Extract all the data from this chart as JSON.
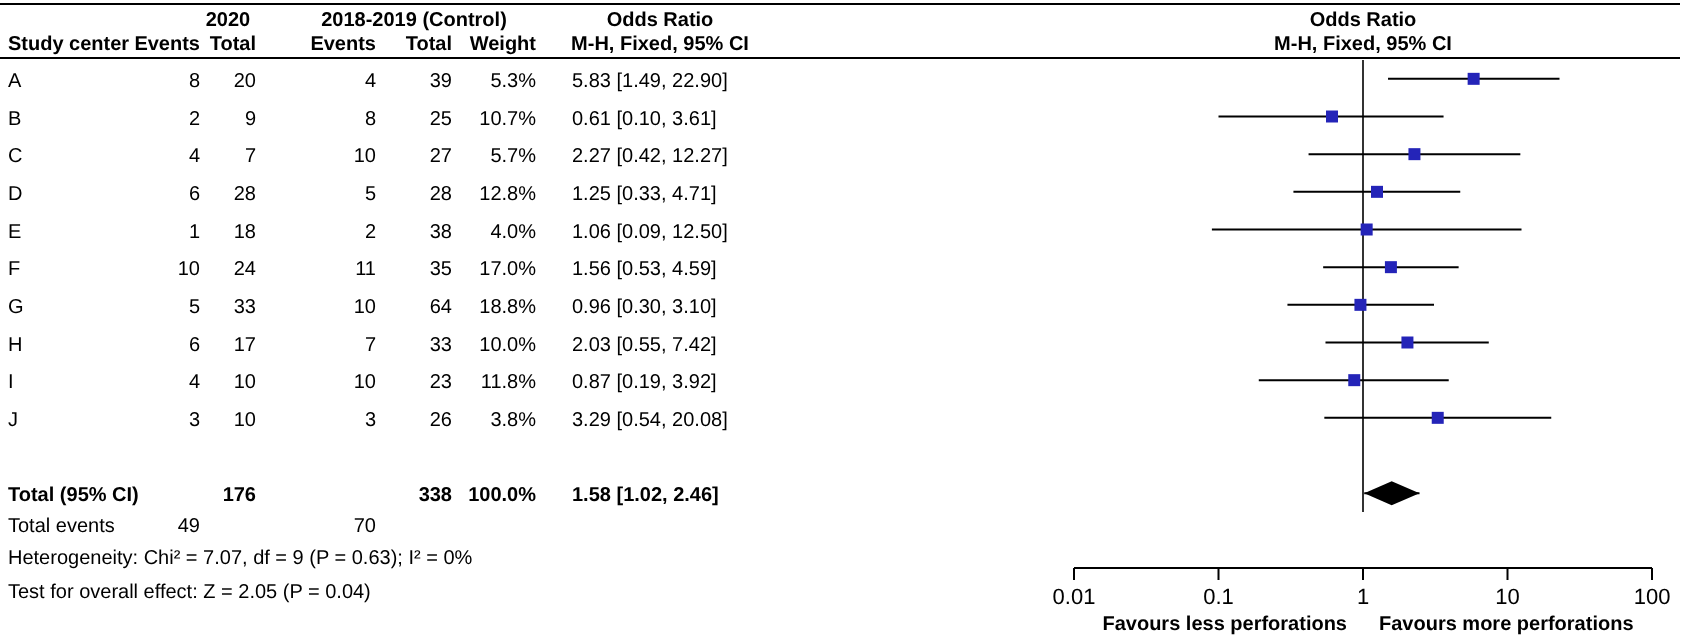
{
  "chart_data": [
    {
      "type": "other",
      "annotations": [
        "Study center",
        "2020",
        "2018-2019 (Control)",
        "Odds Ratio",
        "M-H, Fixed, 95% CI",
        "Events",
        "Total",
        "Events",
        "Total",
        "Weight",
        "A",
        "8",
        "20",
        "4",
        "39",
        "5.3%",
        "5.83 [1.49, 22.90]",
        "B",
        "2",
        "9",
        "8",
        "25",
        "10.7%",
        "0.61 [0.10, 3.61]",
        "C",
        "4",
        "7",
        "10",
        "27",
        "5.7%",
        "2.27 [0.42, 12.27]",
        "D",
        "6",
        "28",
        "5",
        "28",
        "12.8%",
        "1.25 [0.33, 4.71]",
        "E",
        "1",
        "18",
        "2",
        "38",
        "4.0%",
        "1.06 [0.09, 12.50]",
        "F",
        "10",
        "24",
        "11",
        "35",
        "17.0%",
        "1.56 [0.53, 4.59]",
        "G",
        "5",
        "33",
        "10",
        "64",
        "18.8%",
        "0.96 [0.30, 3.10]",
        "H",
        "6",
        "17",
        "7",
        "33",
        "10.0%",
        "2.03 [0.55, 7.42]",
        "I",
        "4",
        "10",
        "10",
        "23",
        "11.8%",
        "0.87 [0.19, 3.92]",
        "J",
        "3",
        "10",
        "3",
        "26",
        "3.8%",
        "3.29 [0.54, 20.08]",
        "Total (95% CI)",
        "176",
        "338",
        "100.0%",
        "1.58 [1.02, 2.46]",
        "Total events",
        "49",
        "70",
        "Heterogeneity: Chi² = 7.07, df = 9 (P = 0.63); I² = 0%",
        "Test for overall effect: Z = 2.05 (P = 0.04)"
      ]
    },
    {
      "type": "bar",
      "orientation": "horizontal",
      "title": "Odds Ratio",
      "subtitle": "M-H, Fixed, 95% CI",
      "categories": [
        null,
        null,
        null,
        null,
        null,
        null,
        null,
        null,
        null,
        null,
        null,
        null
      ],
      "series": [
        {
          "type": "scatter",
          "color": "#2424b8",
          "marker": "square",
          "values": [
            5.83,
            0.61,
            2.27,
            1.25,
            1.06,
            1.56,
            0.96,
            2.03,
            0.87,
            3.29,
            null,
            null
          ],
          "errors": [
            [
              1.49,
              22.9
            ],
            [
              0.1,
              3.61
            ],
            [
              0.42,
              12.27
            ],
            [
              0.33,
              4.71
            ],
            [
              0.09,
              12.5
            ],
            [
              0.53,
              4.59
            ],
            [
              0.3,
              3.1
            ],
            [
              0.55,
              7.42
            ],
            [
              0.19,
              3.92
            ],
            [
              0.54,
              20.08
            ],
            null,
            null
          ]
        },
        {
          "type": "scatter",
          "color": "#000000",
          "marker": "diamond",
          "values": [
            null,
            null,
            null,
            null,
            null,
            null,
            null,
            null,
            null,
            null,
            null,
            1.58
          ],
          "errors": [
            null,
            null,
            null,
            null,
            null,
            null,
            null,
            null,
            null,
            null,
            null,
            [
              1.02,
              2.46
            ]
          ]
        }
      ],
      "log": "x",
      "xlim": [
        0.01,
        100
      ],
      "xticks": [
        0.01,
        0.1,
        1,
        10,
        100
      ],
      "tick_labels": "x",
      "ref_lines": [
        {
          "axis": "x",
          "value": 1
        }
      ],
      "annotations": [
        "Favours less perforations",
        "Favours more perforations"
      ]
    }
  ]
}
